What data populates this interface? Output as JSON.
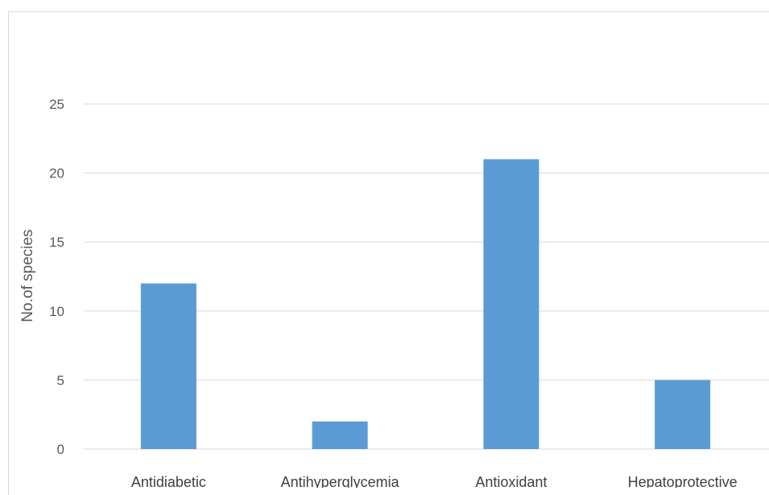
{
  "chart_data": {
    "type": "bar",
    "categories": [
      "Antidiabetic",
      "Antihyperglycemia",
      "Antioxidant",
      "Hepatoprotective"
    ],
    "values": [
      12,
      2,
      21,
      5
    ],
    "title": "",
    "xlabel": "",
    "ylabel": "No.of species",
    "ylim": [
      0,
      25
    ],
    "yticks": [
      "0",
      "5",
      "10",
      "15",
      "20",
      "25"
    ],
    "grid": true,
    "legend": "none",
    "bar_color": "#5b9bd5",
    "grid_color": "#d9d9d9"
  }
}
